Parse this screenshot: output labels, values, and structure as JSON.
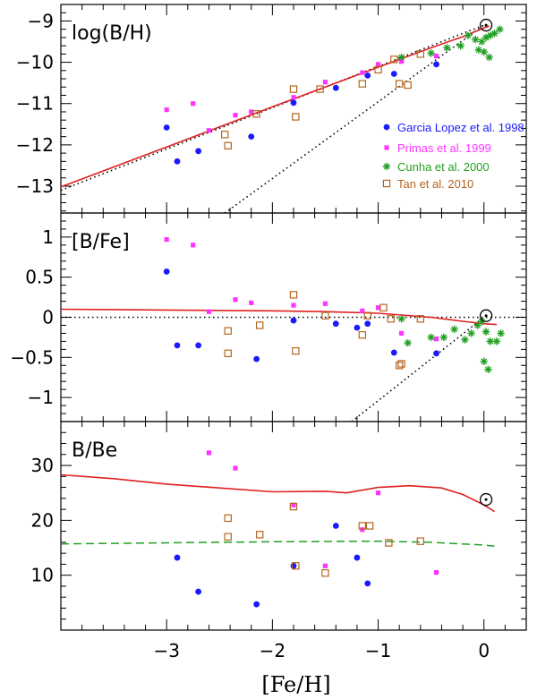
{
  "chart_data": {
    "type": "scatter",
    "xlabel": "[Fe/H]",
    "xlim": [
      -4.0,
      0.4
    ],
    "xticks": [
      -3,
      -2,
      -1,
      0
    ],
    "xtick_labels": [
      "−3",
      "−2",
      "−1",
      "0"
    ],
    "colors": {
      "garcia": "#1a1aff",
      "primas": "#ff33ff",
      "cunha": "#22a022",
      "tan": "#b5651d",
      "model": "#e02020",
      "model_alt": "#22a022",
      "ref": "#000000"
    },
    "legend": [
      {
        "key": "garcia",
        "label": "Garcia Lopez et al. 1998",
        "marker": "dot"
      },
      {
        "key": "primas",
        "label": "Primas et al. 1999",
        "marker": "smallsquare"
      },
      {
        "key": "cunha",
        "label": "Cunha et al. 2000",
        "marker": "star"
      },
      {
        "key": "tan",
        "label": "Tan et al. 2010",
        "marker": "opensquare"
      }
    ],
    "panels": [
      {
        "id": "bh",
        "label": "log(B/H)",
        "ylim": [
          -13.65,
          -8.6
        ],
        "yticks": [
          -13,
          -12,
          -11,
          -10,
          -9
        ],
        "ytick_labels": [
          "−13",
          "−12",
          "−11",
          "−10",
          "−9"
        ],
        "sun": {
          "x": 0.02,
          "y": -9.1
        },
        "model": {
          "x": [
            -4.0,
            -3.0,
            -2.0,
            -1.0,
            -0.5,
            -0.2,
            -0.05,
            0.05
          ],
          "y": [
            -13.02,
            -12.05,
            -11.08,
            -10.12,
            -9.65,
            -9.38,
            -9.22,
            -9.12
          ]
        },
        "dotted_lines": [
          {
            "x": [
              -4.0,
              0.0
            ],
            "y": [
              -13.1,
              -9.1
            ]
          },
          {
            "x": [
              -2.45,
              0.0
            ],
            "y": [
              -13.65,
              -9.1
            ]
          }
        ],
        "series": {
          "garcia": {
            "x": [
              -3.0,
              -2.9,
              -2.7,
              -2.2,
              -1.8,
              -1.4,
              -1.1,
              -0.85,
              -0.45
            ],
            "y": [
              -11.58,
              -12.4,
              -12.15,
              -11.8,
              -10.98,
              -10.62,
              -10.32,
              -10.28,
              -10.05
            ]
          },
          "primas": {
            "x": [
              -3.0,
              -2.75,
              -2.6,
              -2.35,
              -2.2,
              -1.8,
              -1.5,
              -1.15,
              -1.0,
              -0.78,
              -0.45
            ],
            "y": [
              -11.15,
              -11.0,
              -11.65,
              -11.28,
              -11.2,
              -10.85,
              -10.48,
              -10.25,
              -10.05,
              -9.98,
              -9.85
            ]
          },
          "cunha": {
            "x": [
              -0.78,
              -0.5,
              -0.35,
              -0.22,
              -0.15,
              -0.08,
              -0.02,
              0.02,
              0.06,
              0.1,
              0.15,
              0.0,
              0.05,
              -0.05
            ],
            "y": [
              -9.88,
              -9.78,
              -9.65,
              -9.6,
              -9.35,
              -9.45,
              -9.5,
              -9.4,
              -9.35,
              -9.3,
              -9.2,
              -9.75,
              -9.88,
              -9.7
            ]
          },
          "tan": {
            "x": [
              -2.45,
              -2.42,
              -2.15,
              -1.8,
              -1.78,
              -1.55,
              -1.15,
              -1.0,
              -0.85,
              -0.8,
              -0.72,
              -0.6
            ],
            "y": [
              -11.75,
              -12.02,
              -11.25,
              -10.65,
              -11.32,
              -10.65,
              -10.52,
              -10.18,
              -9.93,
              -10.52,
              -10.55,
              -9.8
            ]
          }
        }
      },
      {
        "id": "bfe",
        "label": "[B/Fe]",
        "ylim": [
          -1.3,
          1.3
        ],
        "yticks": [
          -1,
          -0.5,
          0,
          0.5,
          1
        ],
        "ytick_labels": [
          "−1",
          "−0.5",
          "0",
          "0.5",
          "1"
        ],
        "sun": {
          "x": 0.02,
          "y": 0.02
        },
        "model": {
          "x": [
            -4.0,
            -3.0,
            -2.0,
            -1.5,
            -1.0,
            -0.5,
            -0.2,
            0.0,
            0.12
          ],
          "y": [
            0.1,
            0.09,
            0.08,
            0.07,
            0.05,
            0.0,
            -0.05,
            -0.08,
            -0.09
          ]
        },
        "dotted_lines": [
          {
            "x": [
              -4.0,
              0.4
            ],
            "y": [
              0.0,
              0.0
            ]
          },
          {
            "x": [
              -1.25,
              0.0
            ],
            "y": [
              -1.3,
              0.0
            ]
          }
        ],
        "series": {
          "garcia": {
            "x": [
              -3.0,
              -2.9,
              -2.7,
              -2.15,
              -1.8,
              -1.4,
              -1.2,
              -1.1,
              -0.85,
              -0.45
            ],
            "y": [
              0.57,
              -0.35,
              -0.35,
              -0.52,
              -0.04,
              -0.08,
              -0.13,
              -0.08,
              -0.44,
              -0.45
            ]
          },
          "primas": {
            "x": [
              -3.0,
              -2.75,
              -2.6,
              -2.35,
              -2.2,
              -1.8,
              -1.5,
              -1.15,
              -1.0,
              -0.78,
              -0.45
            ],
            "y": [
              0.97,
              0.9,
              0.07,
              0.22,
              0.18,
              0.15,
              0.17,
              0.08,
              0.12,
              -0.2,
              -0.27
            ]
          },
          "cunha": {
            "x": [
              -0.78,
              -0.72,
              -0.5,
              -0.38,
              -0.28,
              -0.18,
              -0.12,
              -0.06,
              -0.02,
              0.02,
              0.06,
              0.12,
              0.16,
              0.0,
              0.04
            ],
            "y": [
              -0.02,
              -0.32,
              -0.25,
              -0.25,
              -0.15,
              -0.28,
              -0.2,
              -0.1,
              -0.05,
              -0.18,
              -0.3,
              -0.3,
              -0.2,
              -0.55,
              -0.65
            ]
          },
          "tan": {
            "x": [
              -2.42,
              -2.42,
              -2.12,
              -1.8,
              -1.78,
              -1.5,
              -1.15,
              -1.1,
              -0.95,
              -0.88,
              -0.8,
              -0.78,
              -0.6
            ],
            "y": [
              -0.17,
              -0.45,
              -0.1,
              0.28,
              -0.42,
              0.02,
              -0.22,
              0.02,
              0.12,
              -0.02,
              -0.6,
              -0.58,
              -0.02
            ]
          }
        }
      },
      {
        "id": "bbe",
        "label": "B/Be",
        "ylim": [
          0,
          38
        ],
        "yticks": [
          10,
          20,
          30
        ],
        "ytick_labels": [
          "10",
          "20",
          "30"
        ],
        "sun": {
          "x": 0.02,
          "y": 23.8
        },
        "model": {
          "x": [
            -4.0,
            -3.5,
            -3.0,
            -2.5,
            -2.0,
            -1.5,
            -1.3,
            -1.0,
            -0.7,
            -0.4,
            -0.2,
            0.0,
            0.1
          ],
          "y": [
            28.3,
            27.6,
            26.6,
            25.9,
            25.2,
            25.3,
            25.0,
            26.0,
            26.3,
            25.9,
            24.7,
            22.8,
            21.6
          ]
        },
        "model_alt": {
          "x": [
            -4.0,
            -3.0,
            -2.0,
            -1.0,
            -0.5,
            0.0,
            0.1
          ],
          "y": [
            15.7,
            15.9,
            16.1,
            16.2,
            16.0,
            15.5,
            15.3
          ]
        },
        "series": {
          "garcia": {
            "x": [
              -2.9,
              -2.7,
              -2.15,
              -1.8,
              -1.4,
              -1.2,
              -1.1
            ],
            "y": [
              13.2,
              7.0,
              4.7,
              11.7,
              19.0,
              13.2,
              8.5
            ]
          },
          "primas": {
            "x": [
              -2.6,
              -2.35,
              -1.8,
              -1.5,
              -1.15,
              -1.0,
              -0.45
            ],
            "y": [
              32.3,
              29.5,
              22.8,
              11.7,
              18.3,
              25.0,
              10.5
            ]
          },
          "tan": {
            "x": [
              -2.42,
              -2.42,
              -2.12,
              -1.8,
              -1.78,
              -1.5,
              -1.15,
              -1.08,
              -0.9,
              -0.6
            ],
            "y": [
              20.4,
              17.0,
              17.4,
              22.5,
              11.7,
              10.4,
              19.0,
              19.0,
              15.9,
              16.2
            ]
          }
        }
      }
    ]
  }
}
